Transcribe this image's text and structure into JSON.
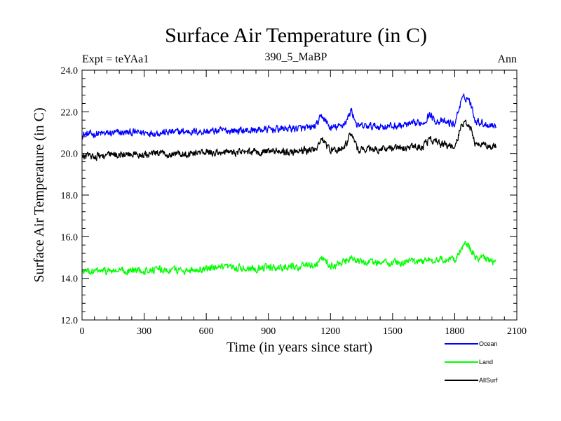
{
  "chart_data": {
    "type": "line",
    "title": "Surface Air Temperature (in C)",
    "experiment_label": "Expt = teYAa1",
    "subtitle": "390_5_MaBP",
    "period_label": "Ann",
    "xlabel": "Time (in years since start)",
    "ylabel": "Surface Air Temperature (in C)",
    "xlim": [
      0,
      2100
    ],
    "ylim": [
      12.0,
      24.0
    ],
    "x_ticks": [
      0,
      300,
      600,
      900,
      1200,
      1500,
      1800,
      2100
    ],
    "x_tick_labels": [
      "0",
      "300",
      "600",
      "900",
      "1200",
      "1500",
      "1800",
      "2100"
    ],
    "y_ticks": [
      12.0,
      14.0,
      16.0,
      18.0,
      20.0,
      22.0,
      24.0
    ],
    "y_tick_labels": [
      "12.0",
      "14.0",
      "16.0",
      "18.0",
      "20.0",
      "22.0",
      "24.0"
    ],
    "x": [
      0,
      100,
      200,
      300,
      400,
      500,
      600,
      700,
      800,
      900,
      1000,
      1100,
      1130,
      1160,
      1200,
      1250,
      1280,
      1300,
      1330,
      1400,
      1500,
      1600,
      1650,
      1680,
      1700,
      1750,
      1800,
      1830,
      1850,
      1870,
      1900,
      1950,
      2000
    ],
    "series": [
      {
        "name": "Ocean",
        "color": "#0000ff",
        "values": [
          20.9,
          20.95,
          21.0,
          21.0,
          21.0,
          21.05,
          21.05,
          21.1,
          21.1,
          21.15,
          21.2,
          21.2,
          21.35,
          21.8,
          21.2,
          21.3,
          21.6,
          22.1,
          21.3,
          21.3,
          21.3,
          21.4,
          21.5,
          21.9,
          21.6,
          21.5,
          21.4,
          22.5,
          22.7,
          22.6,
          21.6,
          21.4,
          21.35
        ]
      },
      {
        "name": "Land",
        "color": "#00ff00",
        "values": [
          14.3,
          14.35,
          14.35,
          14.4,
          14.4,
          14.4,
          14.45,
          14.5,
          14.5,
          14.5,
          14.55,
          14.6,
          14.7,
          15.0,
          14.6,
          14.7,
          14.8,
          15.0,
          14.8,
          14.75,
          14.75,
          14.8,
          14.85,
          14.9,
          14.9,
          14.9,
          14.9,
          15.4,
          15.6,
          15.5,
          15.0,
          14.9,
          14.8
        ]
      },
      {
        "name": "AllSurf",
        "color": "#000000",
        "values": [
          19.85,
          19.9,
          19.95,
          19.95,
          20.0,
          20.0,
          20.05,
          20.05,
          20.05,
          20.1,
          20.1,
          20.15,
          20.25,
          20.7,
          20.1,
          20.2,
          20.5,
          20.95,
          20.2,
          20.2,
          20.2,
          20.3,
          20.35,
          20.7,
          20.55,
          20.4,
          20.3,
          21.3,
          21.55,
          21.4,
          20.5,
          20.35,
          20.3
        ]
      }
    ],
    "noise_amplitude": 0.15,
    "legend_position": "bottom-right"
  }
}
